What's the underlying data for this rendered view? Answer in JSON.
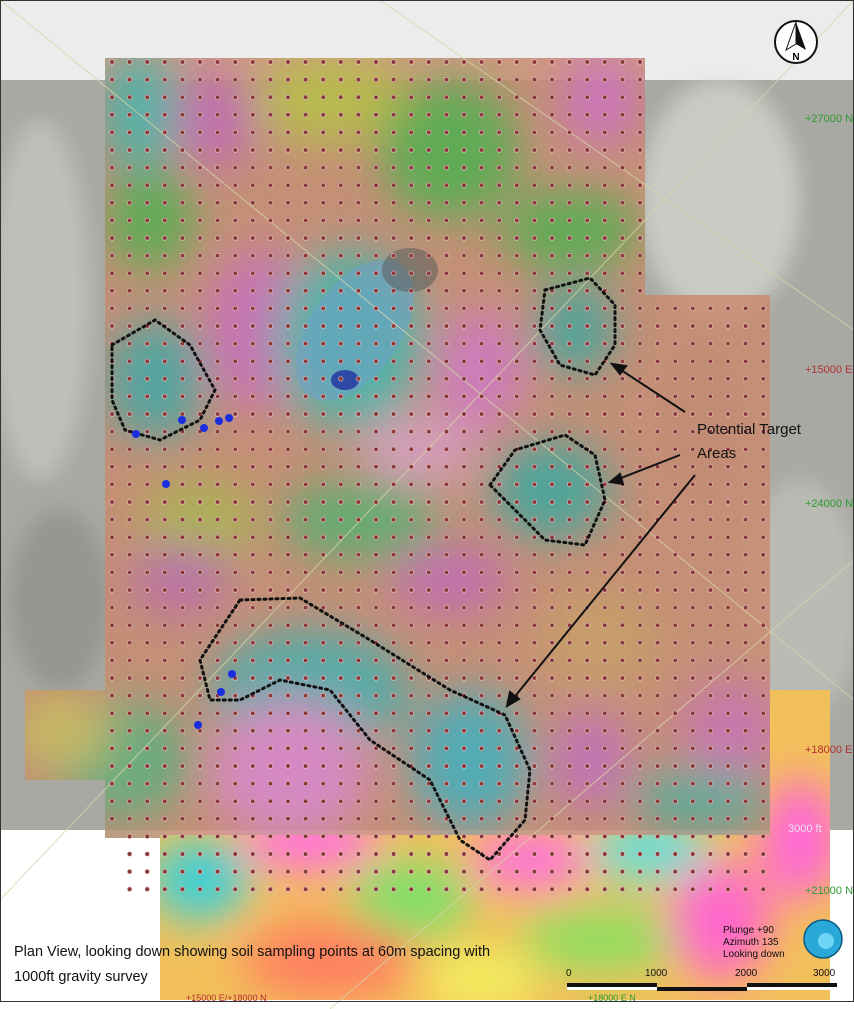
{
  "map": {
    "caption_line1": "Plan View, looking down showing soil sampling points at 60m spacing with",
    "caption_line2": "1000ft gravity survey",
    "callout_line1": "Potential Target",
    "callout_line2": "Areas",
    "compass_letter": "N",
    "compass_icon": "north-arrow-icon",
    "view": {
      "plunge": "Plunge +90",
      "azimuth": "Azimuth 135",
      "looking": "Looking down"
    },
    "grid_labels": {
      "n27000": "+27000 N",
      "e15000": "+15000 E",
      "n24000": "+24000 N",
      "e18000": "+18000 E",
      "n21000": "+21000 N",
      "ft3000": "3000 ft",
      "bottom1": "+15000 E/+18000 N",
      "bottom2": "+18000 E N"
    },
    "scale_bar": {
      "ticks": [
        "0",
        "1000",
        "2000",
        "3000"
      ]
    },
    "colors": {
      "sample_point": "#8a3a3a",
      "drill_point": "#1a2ee0",
      "north_label": "#2e9a2e",
      "east_label": "#b03030"
    }
  }
}
